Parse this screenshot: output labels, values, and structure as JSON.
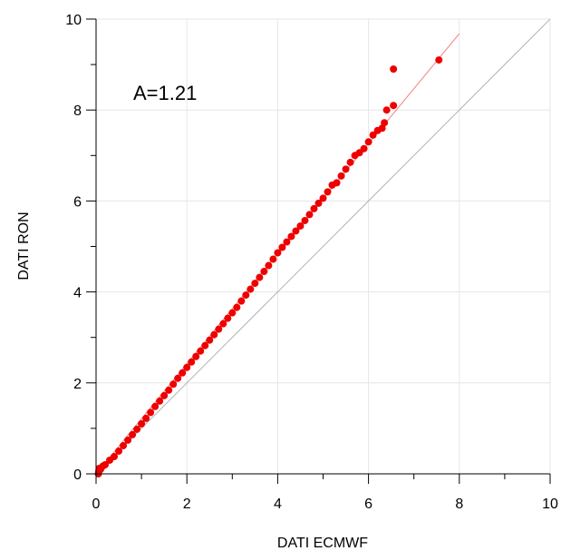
{
  "chart_data": {
    "type": "scatter",
    "xlabel": "DATI ECMWF",
    "ylabel": "DATI RON",
    "xlim": [
      0,
      10
    ],
    "ylim": [
      0,
      10
    ],
    "xticks": [
      "0",
      "2",
      "4",
      "6",
      "8",
      "10"
    ],
    "yticks": [
      "0",
      "2",
      "4",
      "6",
      "8",
      "10"
    ],
    "grid": true,
    "annotation": "A=1.21",
    "colors": {
      "points": "#ee0000",
      "fit_line": "#f08080",
      "identity_line": "#b4b4b4",
      "grid": "#e6e6e6"
    },
    "fit_line": {
      "slope": 1.21,
      "x": [
        0,
        8
      ]
    },
    "identity_line": {
      "x": [
        0,
        10
      ],
      "y": [
        0,
        10
      ]
    },
    "points": [
      [
        0.05,
        0.0
      ],
      [
        0.06,
        0.06
      ],
      [
        0.07,
        0.12
      ],
      [
        0.1,
        0.1
      ],
      [
        0.15,
        0.17
      ],
      [
        0.2,
        0.2
      ],
      [
        0.3,
        0.3
      ],
      [
        0.4,
        0.38
      ],
      [
        0.5,
        0.5
      ],
      [
        0.6,
        0.62
      ],
      [
        0.7,
        0.74
      ],
      [
        0.8,
        0.86
      ],
      [
        0.9,
        0.98
      ],
      [
        1.0,
        1.1
      ],
      [
        1.1,
        1.22
      ],
      [
        1.2,
        1.35
      ],
      [
        1.3,
        1.48
      ],
      [
        1.4,
        1.6
      ],
      [
        1.5,
        1.72
      ],
      [
        1.6,
        1.84
      ],
      [
        1.7,
        1.97
      ],
      [
        1.8,
        2.1
      ],
      [
        1.9,
        2.22
      ],
      [
        2.0,
        2.34
      ],
      [
        2.1,
        2.46
      ],
      [
        2.2,
        2.58
      ],
      [
        2.3,
        2.7
      ],
      [
        2.4,
        2.82
      ],
      [
        2.5,
        2.94
      ],
      [
        2.6,
        3.06
      ],
      [
        2.7,
        3.18
      ],
      [
        2.8,
        3.3
      ],
      [
        2.9,
        3.42
      ],
      [
        3.0,
        3.54
      ],
      [
        3.1,
        3.66
      ],
      [
        3.2,
        3.8
      ],
      [
        3.3,
        3.93
      ],
      [
        3.4,
        4.06
      ],
      [
        3.5,
        4.19
      ],
      [
        3.6,
        4.32
      ],
      [
        3.7,
        4.45
      ],
      [
        3.8,
        4.58
      ],
      [
        3.9,
        4.72
      ],
      [
        4.0,
        4.86
      ],
      [
        4.1,
        4.98
      ],
      [
        4.2,
        5.1
      ],
      [
        4.3,
        5.22
      ],
      [
        4.4,
        5.34
      ],
      [
        4.5,
        5.45
      ],
      [
        4.6,
        5.57
      ],
      [
        4.7,
        5.7
      ],
      [
        4.8,
        5.83
      ],
      [
        4.9,
        5.95
      ],
      [
        5.0,
        6.06
      ],
      [
        5.1,
        6.2
      ],
      [
        5.2,
        6.35
      ],
      [
        5.3,
        6.4
      ],
      [
        5.4,
        6.55
      ],
      [
        5.5,
        6.7
      ],
      [
        5.6,
        6.85
      ],
      [
        5.7,
        7.0
      ],
      [
        5.8,
        7.06
      ],
      [
        5.9,
        7.15
      ],
      [
        6.0,
        7.3
      ],
      [
        6.1,
        7.45
      ],
      [
        6.2,
        7.55
      ],
      [
        6.3,
        7.6
      ],
      [
        6.35,
        7.72
      ],
      [
        6.4,
        8.0
      ],
      [
        6.55,
        8.1
      ],
      [
        6.55,
        8.9
      ],
      [
        7.55,
        9.1
      ]
    ]
  }
}
